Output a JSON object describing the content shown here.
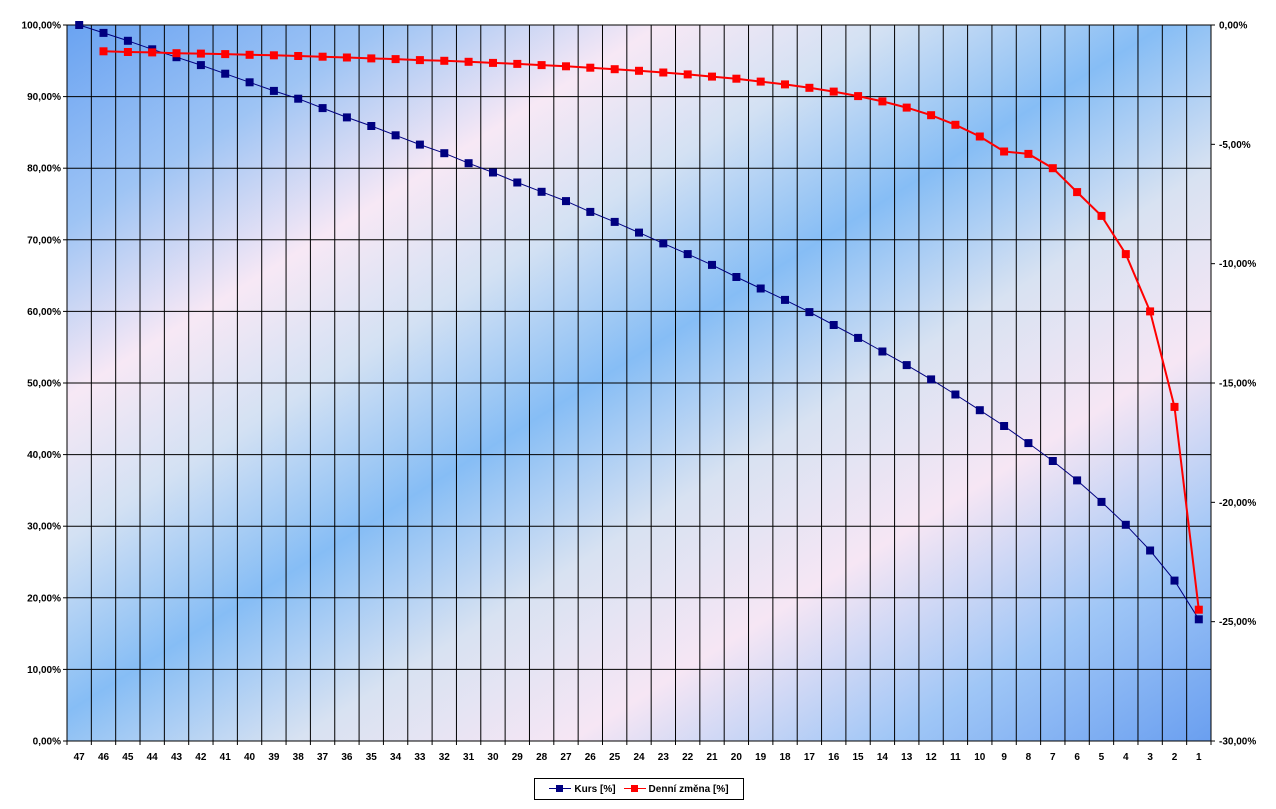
{
  "chart_data": {
    "type": "line",
    "categories": [
      "47",
      "46",
      "45",
      "44",
      "43",
      "42",
      "41",
      "40",
      "39",
      "38",
      "37",
      "36",
      "35",
      "34",
      "33",
      "32",
      "31",
      "30",
      "29",
      "28",
      "27",
      "26",
      "25",
      "24",
      "23",
      "22",
      "21",
      "20",
      "19",
      "18",
      "17",
      "16",
      "15",
      "14",
      "13",
      "12",
      "11",
      "10",
      "9",
      "8",
      "7",
      "6",
      "5",
      "4",
      "3",
      "2",
      "1"
    ],
    "series": [
      {
        "name": "Kurs [%]",
        "axis": "left",
        "color": "#000080",
        "values": [
          100.0,
          98.9,
          97.8,
          96.6,
          95.5,
          94.4,
          93.2,
          92.0,
          90.8,
          89.7,
          88.4,
          87.1,
          85.9,
          84.6,
          83.3,
          82.1,
          80.7,
          79.4,
          78.0,
          76.7,
          75.4,
          73.9,
          72.5,
          71.0,
          69.5,
          68.0,
          66.5,
          64.8,
          63.2,
          61.6,
          59.9,
          58.1,
          56.3,
          54.4,
          52.5,
          50.5,
          48.4,
          46.2,
          44.0,
          41.6,
          39.1,
          36.4,
          33.4,
          30.2,
          26.6,
          22.4,
          17.0
        ]
      },
      {
        "name": "Denní změna [%]",
        "axis": "right",
        "color": "#ff0000",
        "values": [
          null,
          -1.1,
          -1.13,
          -1.15,
          -1.18,
          -1.2,
          -1.22,
          -1.25,
          -1.27,
          -1.3,
          -1.33,
          -1.36,
          -1.4,
          -1.43,
          -1.47,
          -1.5,
          -1.54,
          -1.59,
          -1.63,
          -1.68,
          -1.73,
          -1.79,
          -1.85,
          -1.92,
          -1.99,
          -2.07,
          -2.16,
          -2.25,
          -2.37,
          -2.49,
          -2.63,
          -2.79,
          -2.98,
          -3.2,
          -3.46,
          -3.78,
          -4.18,
          -4.67,
          -5.3,
          -5.4,
          -6.0,
          -7.0,
          -8.0,
          -9.6,
          -12.0,
          -16.0,
          -24.5
        ]
      }
    ],
    "y_left": {
      "range": [
        0,
        100
      ],
      "ticks": [
        0,
        10,
        20,
        30,
        40,
        50,
        60,
        70,
        80,
        90,
        100
      ],
      "tick_labels": [
        "0,00%",
        "10,00%",
        "20,00%",
        "30,00%",
        "40,00%",
        "50,00%",
        "60,00%",
        "70,00%",
        "80,00%",
        "90,00%",
        "100,00%"
      ]
    },
    "y_right": {
      "range": [
        -30,
        0
      ],
      "ticks": [
        -30,
        -25,
        -20,
        -15,
        -10,
        -5,
        0
      ],
      "tick_labels": [
        "-30,00%",
        "-25,00%",
        "-20,00%",
        "-15,00%",
        "-10,00%",
        "-5,00%",
        "0,00%"
      ]
    },
    "title": "",
    "xlabel": "",
    "ylabel": "",
    "grid": true,
    "legend": "bottom-center",
    "background": "diagonal blue/pink gradient"
  }
}
